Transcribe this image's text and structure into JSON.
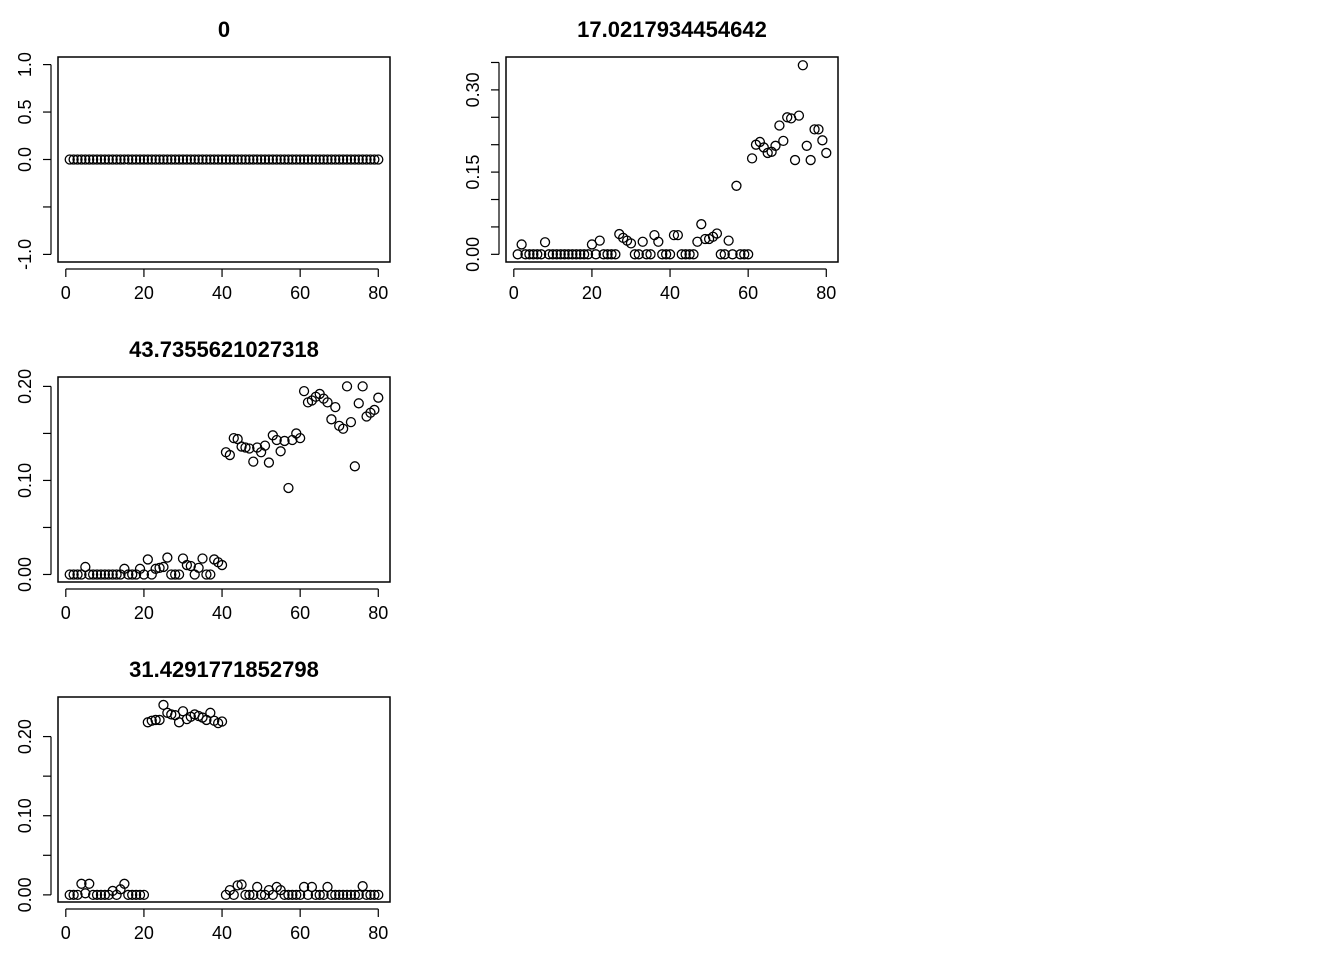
{
  "chart_data": [
    {
      "type": "scatter",
      "title": "0",
      "xlim": [
        -2,
        83
      ],
      "ylim": [
        -1.08,
        1.08
      ],
      "xticks": [
        0,
        20,
        40,
        60,
        80
      ],
      "xtick_labels": [
        "0",
        "20",
        "40",
        "60",
        "80"
      ],
      "yticks": [
        -1.0,
        -0.5,
        0.0,
        0.5,
        1.0
      ],
      "ytick_labels": [
        "-1.0",
        "",
        "0.0",
        "0.5",
        "1.0"
      ],
      "grid": false,
      "x": [
        1,
        2,
        3,
        4,
        5,
        6,
        7,
        8,
        9,
        10,
        11,
        12,
        13,
        14,
        15,
        16,
        17,
        18,
        19,
        20,
        21,
        22,
        23,
        24,
        25,
        26,
        27,
        28,
        29,
        30,
        31,
        32,
        33,
        34,
        35,
        36,
        37,
        38,
        39,
        40,
        41,
        42,
        43,
        44,
        45,
        46,
        47,
        48,
        49,
        50,
        51,
        52,
        53,
        54,
        55,
        56,
        57,
        58,
        59,
        60,
        61,
        62,
        63,
        64,
        65,
        66,
        67,
        68,
        69,
        70,
        71,
        72,
        73,
        74,
        75,
        76,
        77,
        78,
        79,
        80
      ],
      "y": [
        0,
        0,
        0,
        0,
        0,
        0,
        0,
        0,
        0,
        0,
        0,
        0,
        0,
        0,
        0,
        0,
        0,
        0,
        0,
        0,
        0,
        0,
        0,
        0,
        0,
        0,
        0,
        0,
        0,
        0,
        0,
        0,
        0,
        0,
        0,
        0,
        0,
        0,
        0,
        0,
        0,
        0,
        0,
        0,
        0,
        0,
        0,
        0,
        0,
        0,
        0,
        0,
        0,
        0,
        0,
        0,
        0,
        0,
        0,
        0,
        0,
        0,
        0,
        0,
        0,
        0,
        0,
        0,
        0,
        0,
        0,
        0,
        0,
        0,
        0,
        0,
        0,
        0,
        0,
        0
      ]
    },
    {
      "type": "scatter",
      "title": "17.0217934454642",
      "xlim": [
        -2,
        83
      ],
      "ylim": [
        -0.014,
        0.36
      ],
      "xticks": [
        0,
        20,
        40,
        60,
        80
      ],
      "xtick_labels": [
        "0",
        "20",
        "40",
        "60",
        "80"
      ],
      "yticks": [
        0.0,
        0.05,
        0.1,
        0.15,
        0.2,
        0.25,
        0.3,
        0.35
      ],
      "ytick_labels": [
        "0.00",
        "",
        "",
        "0.15",
        "",
        "",
        "0.30",
        ""
      ],
      "grid": false,
      "x": [
        1,
        2,
        3,
        4,
        5,
        6,
        7,
        8,
        9,
        10,
        11,
        12,
        13,
        14,
        15,
        16,
        17,
        18,
        19,
        20,
        21,
        22,
        23,
        24,
        25,
        26,
        27,
        28,
        29,
        30,
        31,
        32,
        33,
        34,
        35,
        36,
        37,
        38,
        39,
        40,
        41,
        42,
        43,
        44,
        45,
        46,
        47,
        48,
        49,
        50,
        51,
        52,
        53,
        54,
        55,
        56,
        57,
        58,
        59,
        60,
        61,
        62,
        63,
        64,
        65,
        66,
        67,
        68,
        69,
        70,
        71,
        72,
        73,
        74,
        75,
        76,
        77,
        78,
        79,
        80
      ],
      "y": [
        0,
        0.018,
        0,
        0,
        0,
        0,
        0,
        0.022,
        0,
        0,
        0,
        0,
        0,
        0,
        0,
        0,
        0,
        0,
        0,
        0.018,
        0,
        0.025,
        0,
        0,
        0,
        0,
        0.037,
        0.03,
        0.025,
        0.02,
        0,
        0,
        0.023,
        0,
        0,
        0.035,
        0.023,
        0,
        0,
        0,
        0.035,
        0.035,
        0,
        0,
        0,
        0,
        0.023,
        0.055,
        0.028,
        0.028,
        0.032,
        0.038,
        0,
        0,
        0.025,
        0,
        0.125,
        0,
        0,
        0,
        0.175,
        0.2,
        0.205,
        0.195,
        0.185,
        0.187,
        0.198,
        0.235,
        0.207,
        0.25,
        0.248,
        0.172,
        0.253,
        0.345,
        0.198,
        0.172,
        0.228,
        0.228,
        0.208,
        0.185
      ]
    },
    {
      "type": "scatter",
      "title": "43.7355621027318",
      "xlim": [
        -2,
        83
      ],
      "ylim": [
        -0.008,
        0.21
      ],
      "xticks": [
        0,
        20,
        40,
        60,
        80
      ],
      "xtick_labels": [
        "0",
        "20",
        "40",
        "60",
        "80"
      ],
      "yticks": [
        0.0,
        0.05,
        0.1,
        0.15,
        0.2
      ],
      "ytick_labels": [
        "0.00",
        "",
        "0.10",
        "",
        "0.20"
      ],
      "grid": false,
      "x": [
        1,
        2,
        3,
        4,
        5,
        6,
        7,
        8,
        9,
        10,
        11,
        12,
        13,
        14,
        15,
        16,
        17,
        18,
        19,
        20,
        21,
        22,
        23,
        24,
        25,
        26,
        27,
        28,
        29,
        30,
        31,
        32,
        33,
        34,
        35,
        36,
        37,
        38,
        39,
        40,
        41,
        42,
        43,
        44,
        45,
        46,
        47,
        48,
        49,
        50,
        51,
        52,
        53,
        54,
        55,
        56,
        57,
        58,
        59,
        60,
        61,
        62,
        63,
        64,
        65,
        66,
        67,
        68,
        69,
        70,
        71,
        72,
        73,
        74,
        75,
        76,
        77,
        78,
        79,
        80
      ],
      "y": [
        0,
        0,
        0,
        0,
        0.008,
        0,
        0,
        0,
        0,
        0,
        0,
        0,
        0,
        0,
        0.006,
        0,
        0,
        0,
        0.006,
        0,
        0.016,
        0,
        0.006,
        0.007,
        0.008,
        0.018,
        0,
        0,
        0,
        0.017,
        0.01,
        0.009,
        0,
        0.007,
        0.017,
        0,
        0,
        0.016,
        0.013,
        0.01,
        0.13,
        0.127,
        0.145,
        0.144,
        0.136,
        0.135,
        0.134,
        0.12,
        0.135,
        0.13,
        0.137,
        0.119,
        0.148,
        0.143,
        0.131,
        0.142,
        0.092,
        0.143,
        0.15,
        0.145,
        0.195,
        0.183,
        0.185,
        0.189,
        0.192,
        0.187,
        0.183,
        0.165,
        0.178,
        0.158,
        0.155,
        0.2,
        0.162,
        0.115,
        0.182,
        0.2,
        0.168,
        0.172,
        0.175,
        0.188
      ]
    },
    {
      "type": "scatter",
      "title": "31.4291771852798",
      "xlim": [
        -2,
        83
      ],
      "ylim": [
        -0.009,
        0.25
      ],
      "xticks": [
        0,
        20,
        40,
        60,
        80
      ],
      "xtick_labels": [
        "0",
        "20",
        "40",
        "60",
        "80"
      ],
      "yticks": [
        0.0,
        0.05,
        0.1,
        0.15,
        0.2
      ],
      "ytick_labels": [
        "0.00",
        "",
        "0.10",
        "",
        "0.20"
      ],
      "grid": false,
      "x": [
        1,
        2,
        3,
        4,
        5,
        6,
        7,
        8,
        9,
        10,
        11,
        12,
        13,
        14,
        15,
        16,
        17,
        18,
        19,
        20,
        21,
        22,
        23,
        24,
        25,
        26,
        27,
        28,
        29,
        30,
        31,
        32,
        33,
        34,
        35,
        36,
        37,
        38,
        39,
        40,
        41,
        42,
        43,
        44,
        45,
        46,
        47,
        48,
        49,
        50,
        51,
        52,
        53,
        54,
        55,
        56,
        57,
        58,
        59,
        60,
        61,
        62,
        63,
        64,
        65,
        66,
        67,
        68,
        69,
        70,
        71,
        72,
        73,
        74,
        75,
        76,
        77,
        78,
        79,
        80
      ],
      "y": [
        0,
        0,
        0,
        0.014,
        0.002,
        0.014,
        0,
        0,
        0,
        0,
        0,
        0.005,
        0,
        0.007,
        0.014,
        0,
        0,
        0,
        0,
        0,
        0.218,
        0.22,
        0.221,
        0.221,
        0.24,
        0.23,
        0.228,
        0.227,
        0.218,
        0.232,
        0.222,
        0.225,
        0.228,
        0.226,
        0.224,
        0.221,
        0.23,
        0.22,
        0.217,
        0.219,
        0,
        0.006,
        0,
        0.012,
        0.013,
        0,
        0,
        0,
        0.01,
        0,
        0,
        0.006,
        0,
        0.01,
        0.006,
        0,
        0,
        0,
        0,
        0,
        0.01,
        0,
        0.01,
        0,
        0,
        0,
        0.01,
        0,
        0,
        0,
        0,
        0,
        0,
        0,
        0,
        0.011,
        0,
        0,
        0,
        0
      ]
    }
  ]
}
